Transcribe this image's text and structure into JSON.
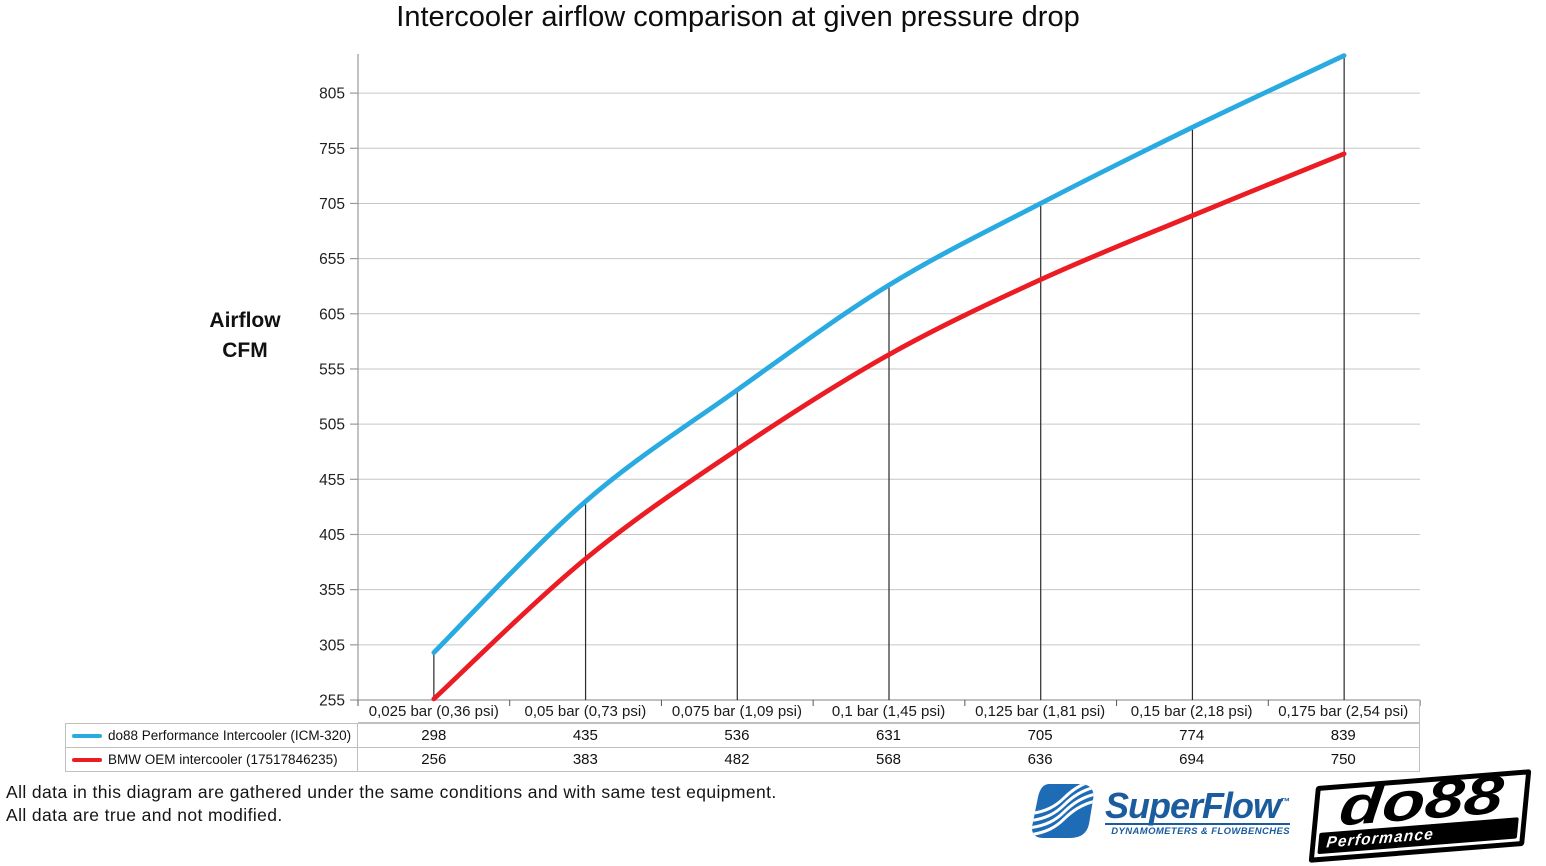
{
  "chart_data": {
    "type": "line",
    "title": "Intercooler airflow comparison at given pressure drop",
    "y_axis_title_lines": [
      "Airflow",
      "CFM"
    ],
    "ylabel": "Airflow CFM",
    "xlabel": "",
    "categories": [
      "0,025 bar (0,36 psi)",
      "0,05 bar (0,73 psi)",
      "0,075 bar (1,09 psi)",
      "0,1 bar (1,45 psi)",
      "0,125 bar (1,81 psi)",
      "0,15 bar (2,18 psi)",
      "0,175 bar (2,54 psi)"
    ],
    "series": [
      {
        "name": "do88 Performance Intercooler (ICM-320)",
        "color": "#29ABE2",
        "values": [
          298,
          435,
          536,
          631,
          705,
          774,
          839
        ]
      },
      {
        "name": "BMW OEM intercooler (17517846235)",
        "color": "#EC1C24",
        "values": [
          256,
          383,
          482,
          568,
          636,
          694,
          750
        ]
      }
    ],
    "y_ticks": [
      255,
      305,
      355,
      405,
      455,
      505,
      555,
      605,
      655,
      705,
      755,
      805
    ],
    "ylim": [
      255,
      839
    ],
    "grid": true,
    "gridline_color": "#C6C6C6",
    "axis_color": "#9A9A9A",
    "drop_line_color": "#2A2A2A",
    "legend_position": "left-of-data-table",
    "smooth_lines": true
  },
  "footer": {
    "line1": "All data in this diagram are gathered under the same conditions and with same test equipment.",
    "line2": "All data are true and not modified."
  },
  "logos": {
    "superflow": {
      "name": "SuperFlow",
      "tm": "™",
      "tagline": "DYNAMOMETERS & FLOWBENCHES",
      "brand_color": "#1A5C9E",
      "icon_color": "#1E6CB5"
    },
    "do88": {
      "name": "do88",
      "tagline": "Performance",
      "color": "#000000"
    }
  }
}
